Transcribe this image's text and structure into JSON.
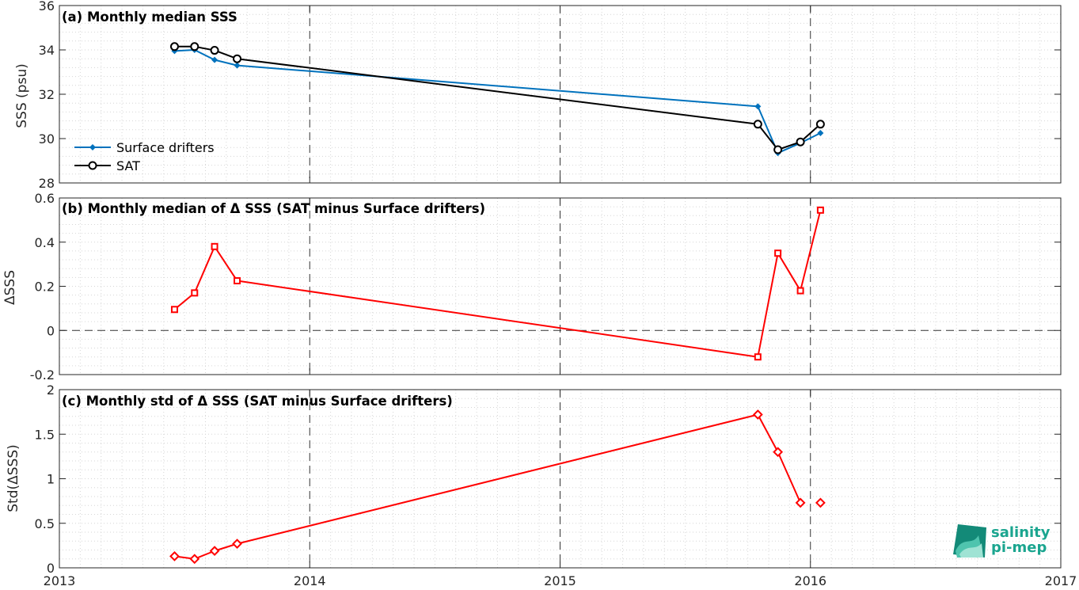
{
  "colors": {
    "drifters": "#0072bd",
    "sat": "#000000",
    "delta": "#ff0000",
    "logo": "#1aa58f"
  },
  "logo": {
    "line1": "salinity",
    "line2": "pi-mep"
  },
  "chart_data": [
    {
      "type": "line",
      "title": "(a) Monthly median SSS",
      "ylabel": "SSS (psu)",
      "xlim": [
        2013,
        2017
      ],
      "ylim": [
        28,
        36
      ],
      "yticks": [
        "28",
        "30",
        "32",
        "34",
        "36"
      ],
      "xticks": [
        "2013",
        "2014",
        "2015",
        "2016",
        "2017"
      ],
      "grid": "minor dotted; dashed year lines",
      "legend": "lower-left",
      "x": [
        2013.46,
        2013.54,
        2013.62,
        2013.71,
        2015.79,
        2015.87,
        2015.96,
        2016.04
      ],
      "series": [
        {
          "name": "Surface drifters",
          "marker": "diamond-filled",
          "values": [
            33.95,
            34.0,
            33.55,
            33.3,
            31.45,
            29.35,
            29.8,
            30.25
          ]
        },
        {
          "name": "SAT",
          "marker": "circle-open",
          "values": [
            34.15,
            34.15,
            33.98,
            33.6,
            30.65,
            29.5,
            29.85,
            30.65
          ]
        }
      ]
    },
    {
      "type": "line",
      "title": "(b) Monthly median of Δ SSS (SAT minus Surface drifters)",
      "ylabel": "ΔSSS",
      "xlim": [
        2013,
        2017
      ],
      "ylim": [
        -0.2,
        0.6
      ],
      "yticks": [
        "-0.2",
        "0",
        "0.2",
        "0.4",
        "0.6"
      ],
      "grid": "minor dotted; dashed year lines; dashed zero line",
      "x": [
        2013.46,
        2013.54,
        2013.62,
        2013.71,
        2015.79,
        2015.87,
        2015.96,
        2016.04
      ],
      "series": [
        {
          "marker": "square-open",
          "values": [
            0.095,
            0.17,
            0.38,
            0.225,
            -0.12,
            0.35,
            0.18,
            0.545
          ]
        }
      ]
    },
    {
      "type": "line",
      "title": "(c) Monthly std of Δ SSS (SAT minus Surface drifters)",
      "ylabel": "Std(ΔSSS)",
      "xlim": [
        2013,
        2017
      ],
      "ylim": [
        0,
        2
      ],
      "yticks": [
        "0",
        "0.5",
        "1",
        "1.5",
        "2"
      ],
      "grid": "minor dotted; dashed year lines",
      "x": [
        2013.46,
        2013.54,
        2013.62,
        2013.71,
        2015.79,
        2015.87,
        2015.96,
        2016.04
      ],
      "series": [
        {
          "marker": "diamond-open",
          "values": [
            0.13,
            0.1,
            0.19,
            0.27,
            1.72,
            1.3,
            0.73,
            0.73
          ],
          "breaks_after_index": 6
        }
      ]
    }
  ]
}
